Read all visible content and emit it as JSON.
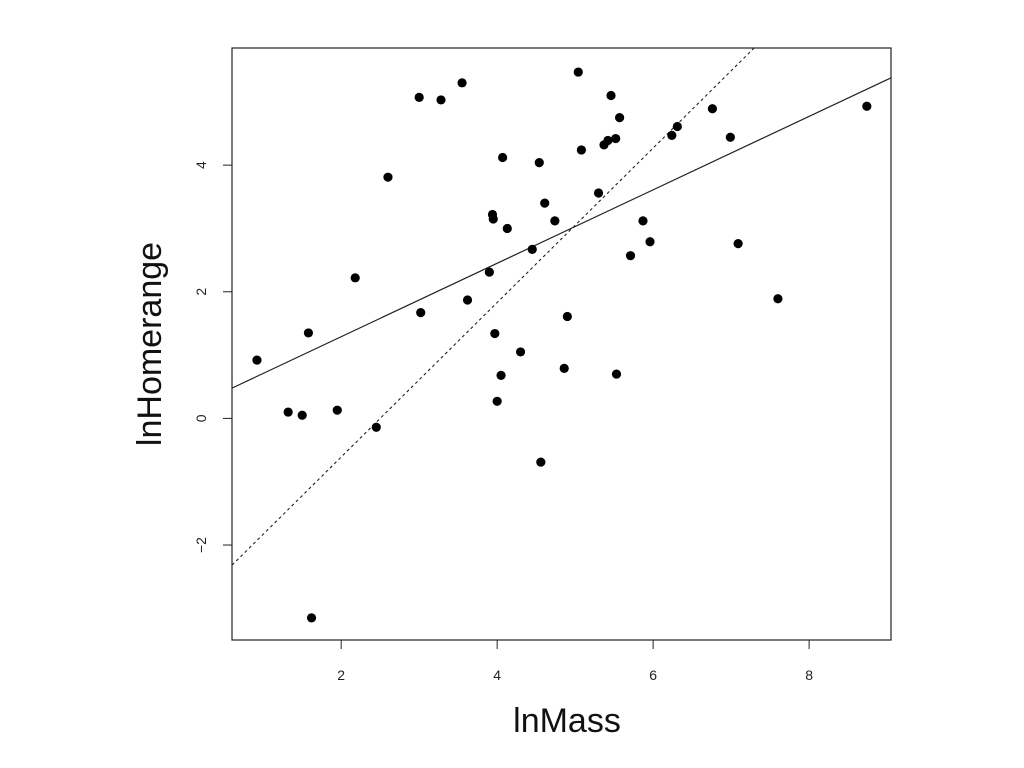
{
  "chart_data": {
    "type": "scatter",
    "title": "",
    "xlabel": "lnMass",
    "ylabel": "lnHomerange",
    "xlim": [
      0.6,
      9.05
    ],
    "ylim": [
      -3.5,
      5.85
    ],
    "xticks": [
      2,
      4,
      6,
      8
    ],
    "yticks": [
      -2,
      0,
      2,
      4
    ],
    "grid": false,
    "points": [
      {
        "x": 0.92,
        "y": 0.92
      },
      {
        "x": 1.32,
        "y": 0.1
      },
      {
        "x": 1.5,
        "y": 0.05
      },
      {
        "x": 1.58,
        "y": 1.35
      },
      {
        "x": 1.62,
        "y": -3.15
      },
      {
        "x": 1.95,
        "y": 0.13
      },
      {
        "x": 2.18,
        "y": 2.22
      },
      {
        "x": 2.45,
        "y": -0.14
      },
      {
        "x": 2.6,
        "y": 3.81
      },
      {
        "x": 3.0,
        "y": 5.07
      },
      {
        "x": 3.02,
        "y": 1.67
      },
      {
        "x": 3.28,
        "y": 5.03
      },
      {
        "x": 3.55,
        "y": 5.3
      },
      {
        "x": 3.62,
        "y": 1.87
      },
      {
        "x": 3.9,
        "y": 2.31
      },
      {
        "x": 3.94,
        "y": 3.22
      },
      {
        "x": 3.95,
        "y": 3.15
      },
      {
        "x": 3.97,
        "y": 1.34
      },
      {
        "x": 4.0,
        "y": 0.27
      },
      {
        "x": 4.05,
        "y": 0.68
      },
      {
        "x": 4.07,
        "y": 4.12
      },
      {
        "x": 4.13,
        "y": 3.0
      },
      {
        "x": 4.3,
        "y": 1.05
      },
      {
        "x": 4.45,
        "y": 2.67
      },
      {
        "x": 4.54,
        "y": 4.04
      },
      {
        "x": 4.56,
        "y": -0.69
      },
      {
        "x": 4.61,
        "y": 3.4
      },
      {
        "x": 4.74,
        "y": 3.12
      },
      {
        "x": 4.86,
        "y": 0.79
      },
      {
        "x": 4.9,
        "y": 1.61
      },
      {
        "x": 5.04,
        "y": 5.47
      },
      {
        "x": 5.08,
        "y": 4.24
      },
      {
        "x": 5.3,
        "y": 3.56
      },
      {
        "x": 5.37,
        "y": 4.32
      },
      {
        "x": 5.42,
        "y": 4.39
      },
      {
        "x": 5.46,
        "y": 5.1
      },
      {
        "x": 5.52,
        "y": 4.42
      },
      {
        "x": 5.53,
        "y": 0.7
      },
      {
        "x": 5.57,
        "y": 4.75
      },
      {
        "x": 5.71,
        "y": 2.57
      },
      {
        "x": 5.87,
        "y": 3.12
      },
      {
        "x": 5.96,
        "y": 2.79
      },
      {
        "x": 6.24,
        "y": 4.47
      },
      {
        "x": 6.31,
        "y": 4.61
      },
      {
        "x": 6.76,
        "y": 4.89
      },
      {
        "x": 6.99,
        "y": 4.44
      },
      {
        "x": 7.09,
        "y": 2.76
      },
      {
        "x": 7.6,
        "y": 1.89
      },
      {
        "x": 8.74,
        "y": 4.93
      }
    ],
    "lines": [
      {
        "style": "solid",
        "intercept": 0.13,
        "slope": 0.58
      },
      {
        "style": "dashed",
        "intercept": -3.05,
        "slope": 1.22
      }
    ]
  }
}
